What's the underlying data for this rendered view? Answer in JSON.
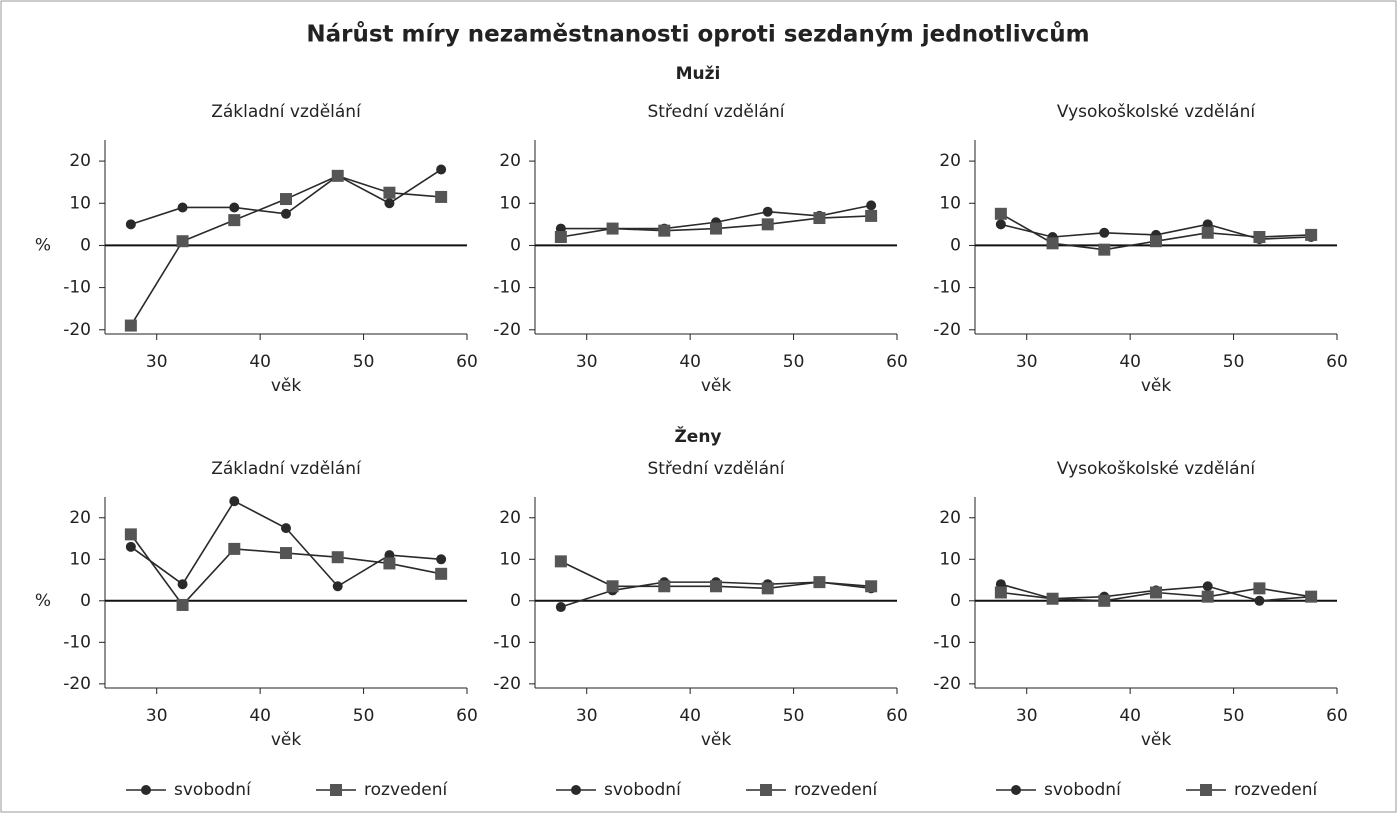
{
  "title": "Nárůst míry nezaměstnanosti oproti sezdaným jednotlivcům",
  "sections": [
    "Muži",
    "Ženy"
  ],
  "chart_data": [
    {
      "type": "line",
      "title": "Základní vzdělání",
      "xlabel": "věk",
      "ylabel": "%",
      "x": [
        27.5,
        32.5,
        37.5,
        42.5,
        47.5,
        52.5,
        57.5
      ],
      "series": [
        {
          "color": "#2a2a2a",
          "marker": "circle",
          "values": [
            5,
            9,
            9,
            7.5,
            16.5,
            10,
            18
          ]
        },
        {
          "color": "#2a2a2a",
          "marker": "square",
          "values": [
            -19,
            1,
            6,
            11,
            16.5,
            12.5,
            11.5
          ]
        }
      ],
      "xlim": [
        25,
        60
      ],
      "ylim": [
        -21,
        25
      ],
      "xticks": [
        30,
        40,
        50,
        60
      ],
      "yticks": [
        -20,
        -10,
        0,
        10,
        20
      ],
      "zero_line": true
    },
    {
      "type": "line",
      "title": "Střední vzdělání",
      "xlabel": "věk",
      "x": [
        27.5,
        32.5,
        37.5,
        42.5,
        47.5,
        52.5,
        57.5
      ],
      "series": [
        {
          "color": "#2a2a2a",
          "marker": "circle",
          "values": [
            4,
            4,
            4,
            5.5,
            8,
            7,
            9.5
          ]
        },
        {
          "color": "#2a2a2a",
          "marker": "square",
          "values": [
            2,
            4,
            3.5,
            4,
            5,
            6.5,
            7
          ]
        }
      ],
      "xlim": [
        25,
        60
      ],
      "ylim": [
        -21,
        25
      ],
      "xticks": [
        30,
        40,
        50,
        60
      ],
      "yticks": [
        -20,
        -10,
        0,
        10,
        20
      ],
      "zero_line": true
    },
    {
      "type": "line",
      "title": "Vysokoškolské vzdělání",
      "xlabel": "věk",
      "x": [
        27.5,
        32.5,
        37.5,
        42.5,
        47.5,
        52.5,
        57.5
      ],
      "series": [
        {
          "color": "#2a2a2a",
          "marker": "circle",
          "values": [
            5,
            2,
            3,
            2.5,
            5,
            1.5,
            2
          ]
        },
        {
          "color": "#2a2a2a",
          "marker": "square",
          "values": [
            7.5,
            0.5,
            -1,
            1,
            3,
            2,
            2.5
          ]
        }
      ],
      "xlim": [
        25,
        60
      ],
      "ylim": [
        -21,
        25
      ],
      "xticks": [
        30,
        40,
        50,
        60
      ],
      "yticks": [
        -20,
        -10,
        0,
        10,
        20
      ],
      "zero_line": true
    },
    {
      "type": "line",
      "title": "Základní vzdělání",
      "xlabel": "věk",
      "ylabel": "%",
      "x": [
        27.5,
        32.5,
        37.5,
        42.5,
        47.5,
        52.5,
        57.5
      ],
      "series": [
        {
          "name": "svobodní",
          "color": "#2a2a2a",
          "marker": "circle",
          "values": [
            13,
            4,
            24,
            17.5,
            3.5,
            11,
            10
          ]
        },
        {
          "name": "rozvedení",
          "color": "#2a2a2a",
          "marker": "square",
          "values": [
            16,
            -1,
            12.5,
            11.5,
            10.5,
            9,
            6.5
          ]
        }
      ],
      "xlim": [
        25,
        60
      ],
      "ylim": [
        -21,
        25
      ],
      "xticks": [
        30,
        40,
        50,
        60
      ],
      "yticks": [
        -20,
        -10,
        0,
        10,
        20
      ],
      "zero_line": true,
      "legend": "bottom"
    },
    {
      "type": "line",
      "title": "Střední vzdělání",
      "xlabel": "věk",
      "x": [
        27.5,
        32.5,
        37.5,
        42.5,
        47.5,
        52.5,
        57.5
      ],
      "series": [
        {
          "name": "svobodní",
          "color": "#2a2a2a",
          "marker": "circle",
          "values": [
            -1.5,
            2.5,
            4.5,
            4.5,
            4,
            4.5,
            3
          ]
        },
        {
          "name": "rozvedení",
          "color": "#2a2a2a",
          "marker": "square",
          "values": [
            9.5,
            3.5,
            3.5,
            3.5,
            3,
            4.5,
            3.5
          ]
        }
      ],
      "xlim": [
        25,
        60
      ],
      "ylim": [
        -21,
        25
      ],
      "xticks": [
        30,
        40,
        50,
        60
      ],
      "yticks": [
        -20,
        -10,
        0,
        10,
        20
      ],
      "zero_line": true,
      "legend": "bottom"
    },
    {
      "type": "line",
      "title": "Vysokoškolské vzdělání",
      "xlabel": "věk",
      "x": [
        27.5,
        32.5,
        37.5,
        42.5,
        47.5,
        52.5,
        57.5
      ],
      "series": [
        {
          "name": "svobodní",
          "color": "#2a2a2a",
          "marker": "circle",
          "values": [
            4,
            0.5,
            1,
            2.5,
            3.5,
            0,
            1
          ]
        },
        {
          "name": "rozvedení",
          "color": "#2a2a2a",
          "marker": "square",
          "values": [
            2,
            0.5,
            0,
            2,
            1,
            3,
            1
          ]
        }
      ],
      "xlim": [
        25,
        60
      ],
      "ylim": [
        -21,
        25
      ],
      "xticks": [
        30,
        40,
        50,
        60
      ],
      "yticks": [
        -20,
        -10,
        0,
        10,
        20
      ],
      "zero_line": true,
      "legend": "bottom"
    }
  ]
}
